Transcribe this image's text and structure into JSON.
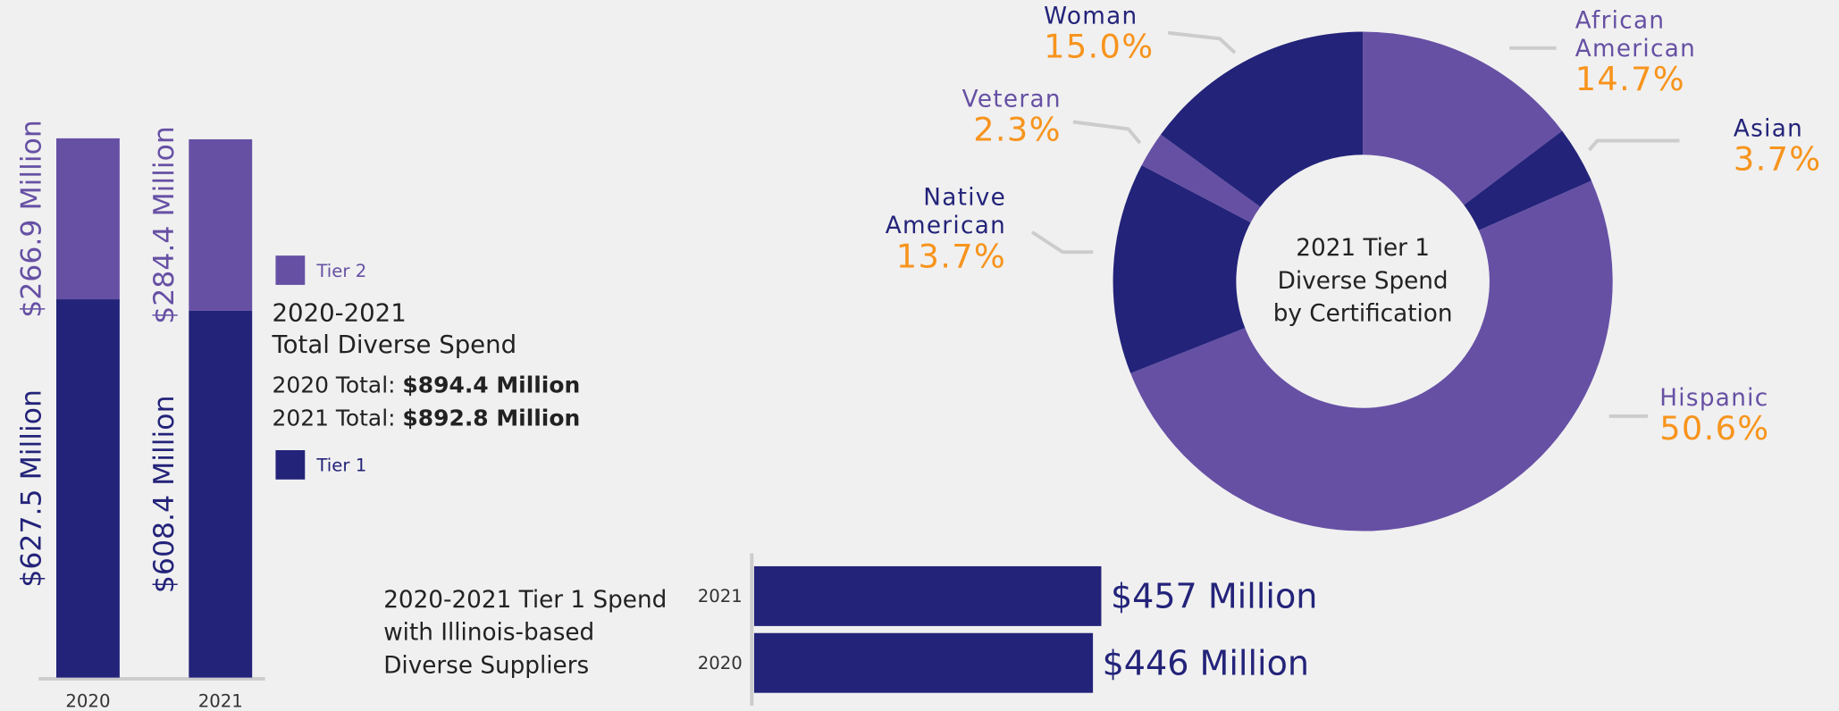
{
  "chart_data": [
    {
      "type": "bar",
      "stacked": true,
      "title": "2020-2021\nTotal Diverse Spend",
      "categories": [
        "2020",
        "2021"
      ],
      "series": [
        {
          "name": "Tier 1",
          "color": "#23237a",
          "values": [
            627.5,
            608.4
          ],
          "value_labels": [
            "$627.5 Million",
            "$608.4 Million"
          ]
        },
        {
          "name": "Tier 2",
          "color": "#6650a4",
          "values": [
            266.9,
            284.4
          ],
          "value_labels": [
            "$266.9 Million",
            "$284.4 Million"
          ]
        }
      ],
      "totals": [
        {
          "label": "2020 Total:",
          "value_label": "$894.4 Million"
        },
        {
          "label": "2021 Total:",
          "value_label": "$892.8 Million"
        }
      ]
    },
    {
      "type": "donut",
      "title": "2021 Tier 1\nDiverse Spend\nby Certification",
      "categories": [
        "African\nAmerican",
        "Asian",
        "Hispanic",
        "Native\nAmerican",
        "Veteran",
        "Woman"
      ],
      "values": [
        14.7,
        3.7,
        50.6,
        13.7,
        2.3,
        15.0
      ],
      "value_labels": [
        "14.7%",
        "3.7%",
        "50.6%",
        "13.7%",
        "2.3%",
        "15.0%"
      ],
      "colors": [
        "#6650a4",
        "#23237a",
        "#6650a4",
        "#23237a",
        "#6650a4",
        "#23237a"
      ],
      "label_color": "#f7941d"
    },
    {
      "type": "hbar",
      "title": "2020-2021 Tier 1 Spend\nwith Illinois-based\nDiverse Suppliers",
      "categories": [
        "2021",
        "2020"
      ],
      "values": [
        457,
        446
      ],
      "value_labels": [
        "$457 Million",
        "$446 Million"
      ],
      "color": "#23237a"
    }
  ]
}
